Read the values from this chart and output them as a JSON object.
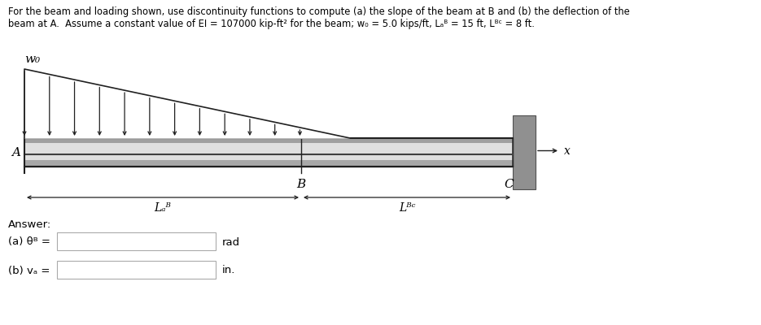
{
  "title_line1": "For the beam and loading shown, use discontinuity functions to compute (a) the slope of the beam at B and (b) the deflection of the",
  "title_line2": "beam at A.  Assume a constant value of EI = 107000 kip-ft² for the beam; w₀ = 5.0 kips/ft, Lₐᴮ = 15 ft, Lᴮᶜ = 8 ft.",
  "bg_color": "#ffffff",
  "answer_label": "Answer:",
  "answer_a_label": "(a) θᴮ =",
  "answer_b_label": "(b) vₐ =",
  "unit_a": "rad",
  "unit_b": "in.",
  "wo_label": "w₀",
  "A_label": "A",
  "B_label": "B",
  "C_label": "C",
  "x_label": "x",
  "LAB_label": "Lₐᴮ",
  "LBC_label": "Lᴮᶜ",
  "beam_fill": "#d0d0d0",
  "beam_edge": "#303030",
  "beam_line_color": "#888888",
  "wall_fill": "#909090",
  "wall_edge": "#505050",
  "arrow_color": "#202020"
}
